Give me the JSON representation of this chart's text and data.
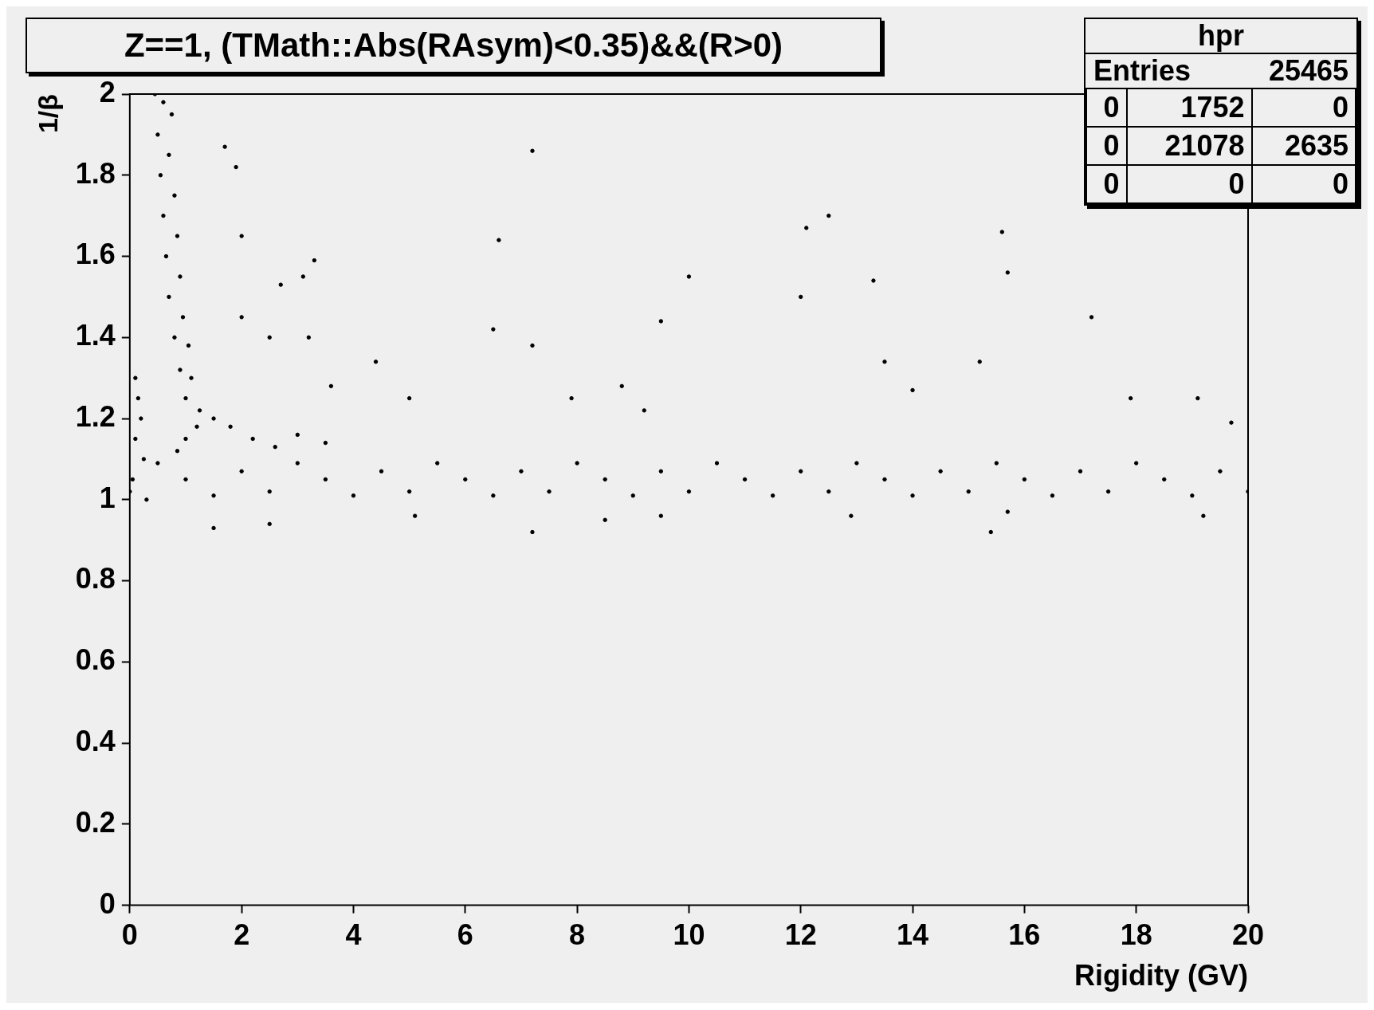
{
  "chart_data": {
    "type": "scatter",
    "title": "Z==1, (TMath::Abs(RAsym)<0.35)&&(R>0)",
    "xlabel": "Rigidity (GV)",
    "ylabel": "1/β",
    "color": "#000000",
    "marker": "circle",
    "grid": false,
    "legend": false,
    "xlim": [
      0,
      20
    ],
    "xticks": [
      0,
      2,
      4,
      6,
      8,
      10,
      12,
      14,
      16,
      18,
      20
    ],
    "ylim": [
      0,
      2
    ],
    "yticks": [
      0,
      0.2,
      0.4,
      0.6,
      0.8,
      1,
      1.2,
      1.4,
      1.6,
      1.8,
      2
    ],
    "annotations": [
      "hpr",
      "Entries",
      "25465",
      "0",
      "1752",
      "0",
      "0",
      "21078",
      "2635",
      "0",
      "0",
      "0"
    ],
    "x": [
      0.45,
      0.6,
      0.75,
      0.5,
      0.7,
      0.55,
      0.8,
      0.6,
      0.85,
      0.65,
      0.9,
      0.7,
      0.95,
      0.8,
      1.05,
      0.9,
      1.1,
      1.0,
      1.25,
      1.2,
      1.5,
      1.8,
      2.2,
      2.6,
      3.0,
      3.5,
      1.0,
      0.85,
      0.1,
      0.15,
      0.2,
      0.1,
      0.25,
      0.05,
      0.3,
      0,
      0.5,
      1,
      1.5,
      2,
      2.5,
      3,
      3.5,
      4,
      4.5,
      5,
      5.5,
      6,
      6.5,
      7,
      7.5,
      8,
      8.5,
      9,
      9.5,
      10,
      10.5,
      11,
      11.5,
      12,
      12.5,
      13,
      13.5,
      14,
      14.5,
      15,
      15.5,
      16,
      16.5,
      17,
      17.5,
      18,
      18.5,
      19,
      19.5,
      20,
      1.7,
      1.9,
      2.0,
      3.3,
      2.7,
      3.1,
      2.0,
      2.5,
      3.2,
      4.4,
      3.6,
      5.0,
      6.6,
      7.2,
      6.5,
      7.2,
      9.5,
      10,
      12,
      12.1,
      12.5,
      13.3,
      15.6,
      15.7,
      17.2,
      13.5,
      15.2,
      14,
      17.9,
      19.1,
      19.7,
      8.8,
      7.9,
      9.2,
      1.5,
      2.5,
      5.1,
      7.2,
      8.5,
      9.5,
      12.9,
      15.4,
      15.7,
      19.2
    ],
    "values": [
      2.0,
      1.98,
      1.95,
      1.9,
      1.85,
      1.8,
      1.75,
      1.7,
      1.65,
      1.6,
      1.55,
      1.5,
      1.45,
      1.4,
      1.38,
      1.32,
      1.3,
      1.25,
      1.22,
      1.18,
      1.2,
      1.18,
      1.15,
      1.13,
      1.16,
      1.14,
      1.15,
      1.12,
      1.3,
      1.25,
      1.2,
      1.15,
      1.1,
      1.05,
      1.0,
      1.02,
      1.09,
      1.05,
      1.01,
      1.07,
      1.02,
      1.09,
      1.05,
      1.01,
      1.07,
      1.02,
      1.09,
      1.05,
      1.01,
      1.07,
      1.02,
      1.09,
      1.05,
      1.01,
      1.07,
      1.02,
      1.09,
      1.05,
      1.01,
      1.07,
      1.02,
      1.09,
      1.05,
      1.01,
      1.07,
      1.02,
      1.09,
      1.05,
      1.01,
      1.07,
      1.02,
      1.09,
      1.05,
      1.01,
      1.07,
      1.02,
      1.87,
      1.82,
      1.65,
      1.59,
      1.53,
      1.55,
      1.45,
      1.4,
      1.4,
      1.34,
      1.28,
      1.25,
      1.64,
      1.86,
      1.42,
      1.38,
      1.44,
      1.55,
      1.5,
      1.67,
      1.7,
      1.54,
      1.66,
      1.56,
      1.45,
      1.34,
      1.34,
      1.27,
      1.25,
      1.25,
      1.19,
      1.28,
      1.25,
      1.22,
      0.93,
      0.94,
      0.96,
      0.92,
      0.95,
      0.96,
      0.96,
      0.92,
      0.97,
      0.96
    ]
  }
}
